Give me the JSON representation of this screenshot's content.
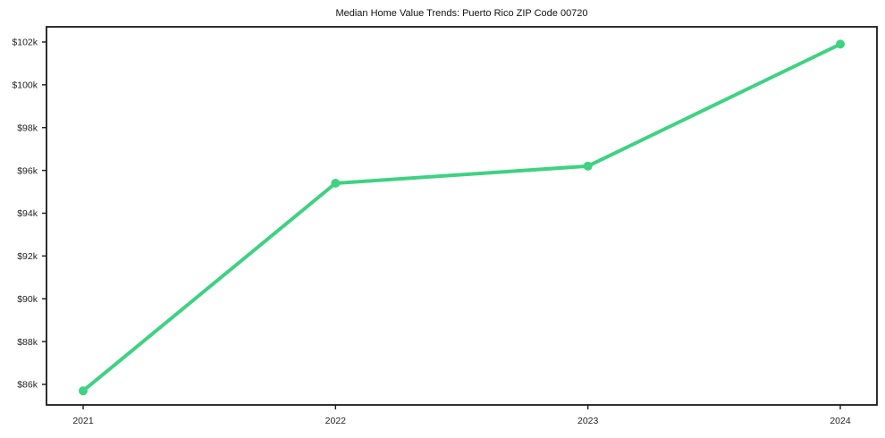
{
  "chart_data": {
    "type": "line",
    "title": "Median Home Value Trends: Puerto Rico ZIP Code 00720",
    "xlabel": "",
    "ylabel": "",
    "x": [
      "2021",
      "2022",
      "2023",
      "2024"
    ],
    "values": [
      85700,
      95400,
      96200,
      101900
    ],
    "ylim": [
      85040,
      102710
    ],
    "yticks": [
      {
        "v": 86000,
        "label": "$86k"
      },
      {
        "v": 88000,
        "label": "$88k"
      },
      {
        "v": 90000,
        "label": "$90k"
      },
      {
        "v": 92000,
        "label": "$92k"
      },
      {
        "v": 94000,
        "label": "$94k"
      },
      {
        "v": 96000,
        "label": "$96k"
      },
      {
        "v": 98000,
        "label": "$98k"
      },
      {
        "v": 100000,
        "label": "$100k"
      },
      {
        "v": 102000,
        "label": "$102k"
      }
    ],
    "grid": false,
    "legend": "none",
    "line_color": "#3ed282",
    "axis_color": "#1a1a1a",
    "text_color": "#1f1f1f",
    "background": "#ffffff"
  }
}
